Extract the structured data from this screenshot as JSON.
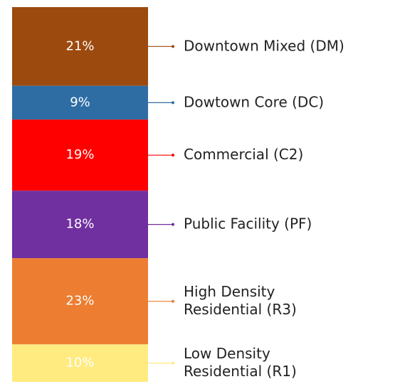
{
  "chart_data": {
    "type": "stacked_bar",
    "ylim": [
      0,
      100
    ],
    "series": [
      {
        "name": "Downtown Mixed (DM)",
        "color": "#9c4a0e",
        "values": [
          21
        ],
        "value_labels": [
          "21%"
        ]
      },
      {
        "name": "Dowtown Core (DC)",
        "color": "#2e6da4",
        "values": [
          9
        ],
        "value_labels": [
          "9%"
        ]
      },
      {
        "name": "Commercial (C2)",
        "color": "#ff0000",
        "values": [
          19
        ],
        "value_labels": [
          "19%"
        ]
      },
      {
        "name": "Public Facility (PF)",
        "color": "#7030a0",
        "values": [
          18
        ],
        "value_labels": [
          "18%"
        ]
      },
      {
        "name": "High Density Residential (R3)",
        "color": "#ed7d31",
        "values": [
          23
        ],
        "value_labels": [
          "23%"
        ]
      },
      {
        "name": "Low Density Residential (R1)",
        "color": "#ffeb80",
        "values": [
          10
        ],
        "value_labels": [
          "10%"
        ]
      }
    ]
  }
}
